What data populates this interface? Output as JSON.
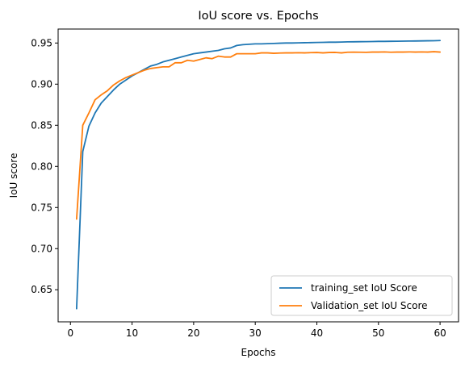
{
  "chart_data": {
    "type": "line",
    "title": "IoU score vs. Epochs",
    "xlabel": "Epochs",
    "ylabel": "IoU score",
    "xlim": [
      -2.0,
      63.0
    ],
    "ylim": [
      0.611,
      0.967
    ],
    "xticks": [
      0,
      10,
      20,
      30,
      40,
      50,
      60
    ],
    "yticks": [
      0.65,
      0.7,
      0.75,
      0.8,
      0.85,
      0.9,
      0.95
    ],
    "ytick_labels": [
      "0.65",
      "0.70",
      "0.75",
      "0.80",
      "0.85",
      "0.90",
      "0.95"
    ],
    "grid": false,
    "legend_position": "lower-right",
    "x": [
      1,
      2,
      3,
      4,
      5,
      6,
      7,
      8,
      9,
      10,
      11,
      12,
      13,
      14,
      15,
      16,
      17,
      18,
      19,
      20,
      21,
      22,
      23,
      24,
      25,
      26,
      27,
      28,
      29,
      30,
      31,
      32,
      33,
      34,
      35,
      36,
      37,
      38,
      39,
      40,
      41,
      42,
      43,
      44,
      45,
      46,
      47,
      48,
      49,
      50,
      51,
      52,
      53,
      54,
      55,
      56,
      57,
      58,
      59,
      60
    ],
    "series": [
      {
        "name": "training_set IoU Score",
        "color": "#1f77b4",
        "values": [
          0.627,
          0.818,
          0.849,
          0.865,
          0.877,
          0.885,
          0.893,
          0.9,
          0.905,
          0.91,
          0.914,
          0.918,
          0.922,
          0.924,
          0.927,
          0.929,
          0.931,
          0.933,
          0.935,
          0.937,
          0.938,
          0.939,
          0.94,
          0.941,
          0.943,
          0.944,
          0.947,
          0.948,
          0.9485,
          0.949,
          0.949,
          0.9492,
          0.9495,
          0.9498,
          0.95,
          0.95,
          0.9502,
          0.9504,
          0.9505,
          0.9507,
          0.9508,
          0.951,
          0.951,
          0.9512,
          0.9514,
          0.9515,
          0.9516,
          0.9517,
          0.9518,
          0.952,
          0.952,
          0.9521,
          0.9522,
          0.9523,
          0.9524,
          0.9525,
          0.9526,
          0.9527,
          0.9528,
          0.953
        ]
      },
      {
        "name": "Validation_set IoU Score",
        "color": "#ff7f0e",
        "values": [
          0.736,
          0.85,
          0.865,
          0.881,
          0.887,
          0.892,
          0.899,
          0.904,
          0.908,
          0.911,
          0.914,
          0.917,
          0.919,
          0.92,
          0.921,
          0.921,
          0.926,
          0.926,
          0.929,
          0.928,
          0.93,
          0.932,
          0.931,
          0.934,
          0.933,
          0.933,
          0.937,
          0.937,
          0.937,
          0.937,
          0.938,
          0.938,
          0.9375,
          0.9378,
          0.938,
          0.938,
          0.9382,
          0.938,
          0.9383,
          0.9385,
          0.938,
          0.9385,
          0.9386,
          0.938,
          0.9388,
          0.9389,
          0.9388,
          0.9387,
          0.939,
          0.939,
          0.9392,
          0.9388,
          0.939,
          0.939,
          0.9392,
          0.939,
          0.9392,
          0.939,
          0.9395,
          0.939
        ]
      }
    ]
  }
}
